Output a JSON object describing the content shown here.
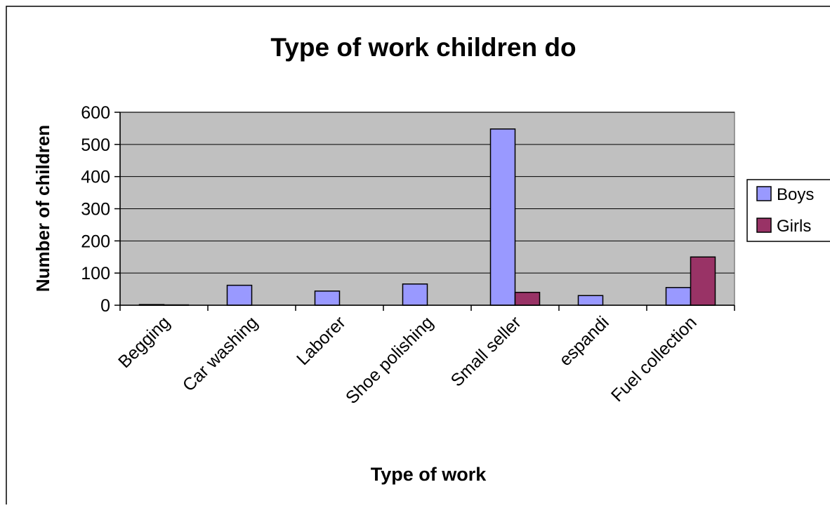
{
  "chart_data": {
    "type": "bar",
    "title": "Type of work children do",
    "xlabel": "Type of work",
    "ylabel": "Number of children",
    "categories": [
      "Begging",
      "Car washing",
      "Laborer",
      "Shoe polishing",
      "Small seller",
      "espandi",
      "Fuel collection"
    ],
    "series": [
      {
        "name": "Boys",
        "color": "#9999ff",
        "values": [
          2,
          62,
          44,
          66,
          548,
          30,
          55
        ]
      },
      {
        "name": "Girls",
        "color": "#993366",
        "values": [
          1,
          0,
          0,
          0,
          40,
          0,
          150
        ]
      }
    ],
    "ylim": [
      0,
      600
    ],
    "yticks": [
      0,
      100,
      200,
      300,
      400,
      500,
      600
    ],
    "grid": true,
    "plot_background": "#c0c0c0",
    "legend_position": "right"
  }
}
